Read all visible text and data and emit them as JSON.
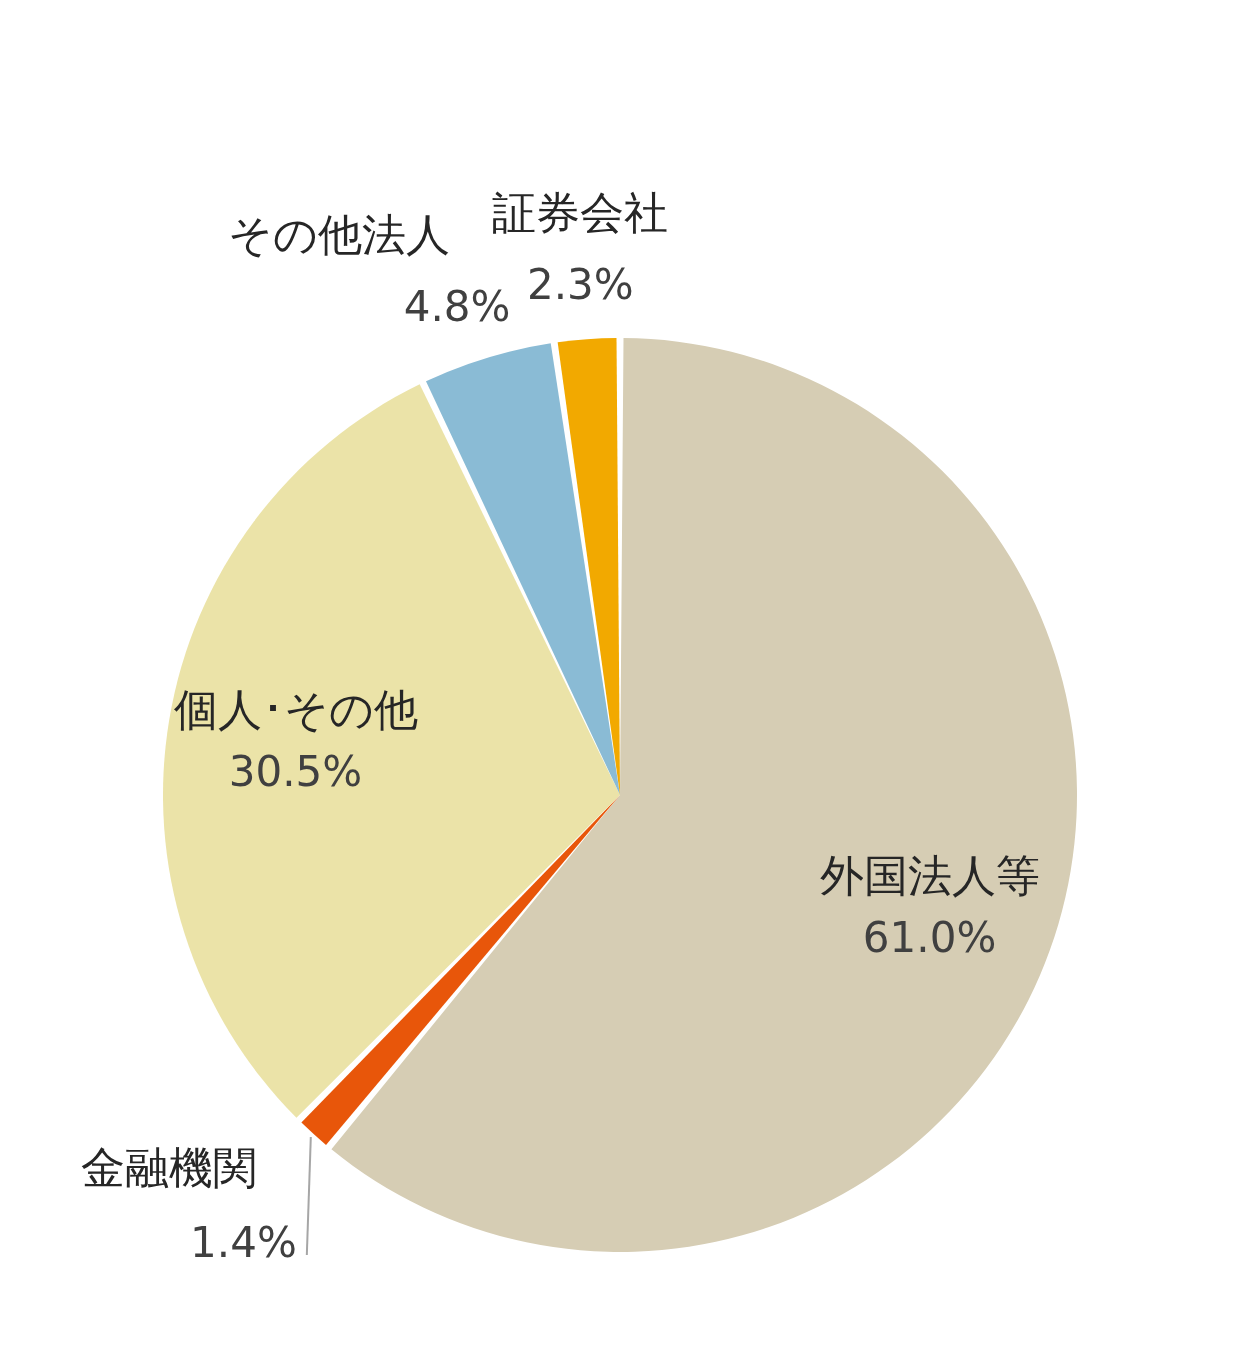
{
  "chart_data": {
    "type": "pie",
    "categories": [
      "外国法人等",
      "金融機関",
      "個人･その他",
      "その他法人",
      "証券会社"
    ],
    "values": [
      61.0,
      1.4,
      30.5,
      4.8,
      2.3
    ],
    "colors": [
      "#d6cdb4",
      "#e8560a",
      "#ebe3a8",
      "#8abbd5",
      "#f2a900"
    ],
    "value_labels": [
      "61.0%",
      "1.4%",
      "30.5%",
      "4.8%",
      "2.3%"
    ]
  }
}
